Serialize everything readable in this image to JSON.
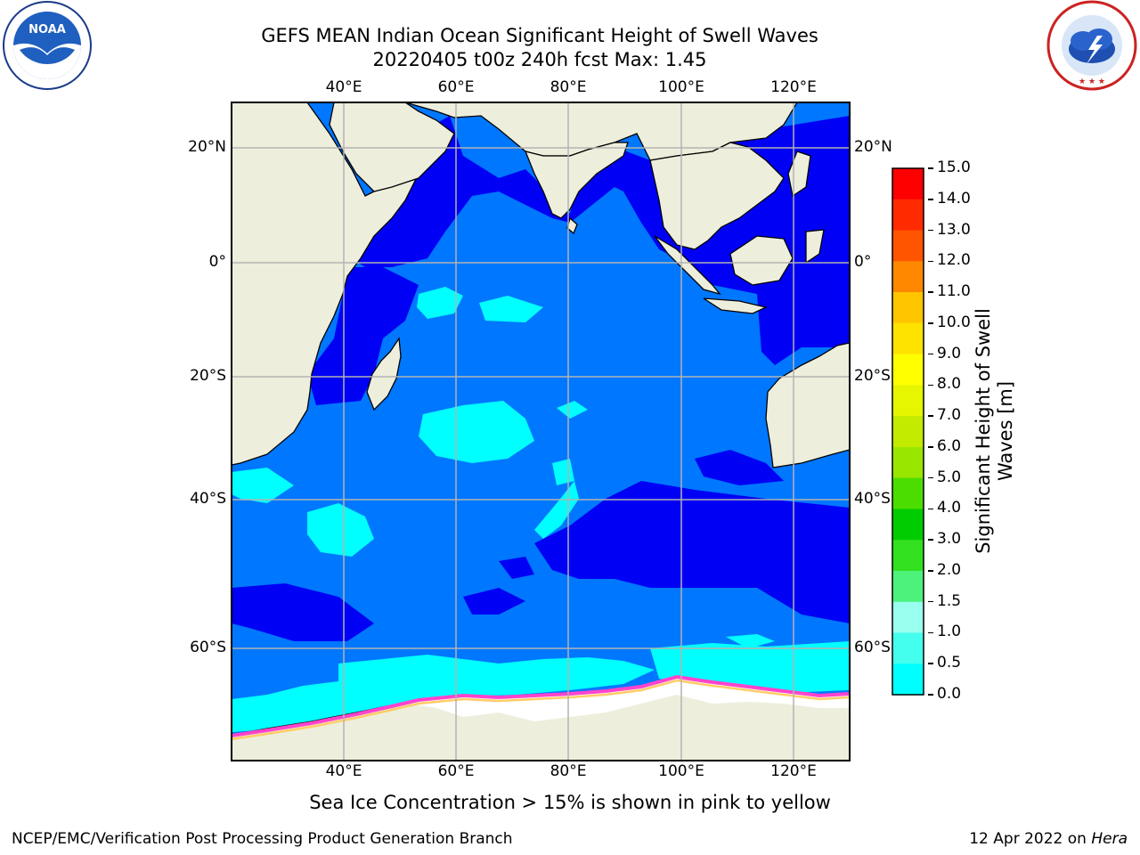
{
  "title": {
    "line1": "GEFS MEAN Indian Ocean Significant Height of Swell Waves",
    "line2": "20220405 t00z 240h fcst   Max: 1.45"
  },
  "map": {
    "lon_ticks": [
      "40°E",
      "60°E",
      "80°E",
      "100°E",
      "120°E"
    ],
    "lat_ticks": [
      "20°N",
      "0°",
      "20°S",
      "40°S",
      "60°S"
    ],
    "lon_range": [
      20,
      130
    ],
    "lat_range": [
      -73,
      27
    ],
    "colors": {
      "land": "#eeeedd",
      "ice": "#ffffff",
      "grid": "#b3b3b3"
    }
  },
  "colorbar": {
    "title_line1": "Significant Height of Swell",
    "title_line2": "Waves [m]",
    "labels": [
      "15.0",
      "14.0",
      "13.0",
      "12.0",
      "11.0",
      "10.0",
      "9.0",
      "8.0",
      "7.0",
      "6.0",
      "5.0",
      "4.0",
      "3.0",
      "2.0",
      "1.5",
      "1.0",
      "0.5",
      "0.0"
    ],
    "colors_bottom_to_top": [
      "#0000f5",
      "#0077ff",
      "#00ffff",
      "#44ffee",
      "#99ffee",
      "#4cf27a",
      "#33e01f",
      "#00cc00",
      "#4cdd00",
      "#99e600",
      "#c3eb00",
      "#e6f500",
      "#ffff00",
      "#ffe300",
      "#ffc600",
      "#ff8800",
      "#ff5500",
      "#ff2a00",
      "#ff0000"
    ]
  },
  "caption": "Sea Ice Concentration > 15% is shown in pink to yellow",
  "footer": {
    "left": "NCEP/EMC/Verification Post Processing Product Generation Branch",
    "right_prefix": "12 Apr 2022 on ",
    "right_host": "Hera"
  },
  "logos": {
    "noaa_text": "NOAA",
    "noaa_ring": "NATIONAL OCEANIC AND ATMOSPHERIC ADMINISTRATION · U.S. DEPARTMENT OF COMMERCE",
    "nws_ring": "NATIONAL WEATHER SERVICE"
  }
}
